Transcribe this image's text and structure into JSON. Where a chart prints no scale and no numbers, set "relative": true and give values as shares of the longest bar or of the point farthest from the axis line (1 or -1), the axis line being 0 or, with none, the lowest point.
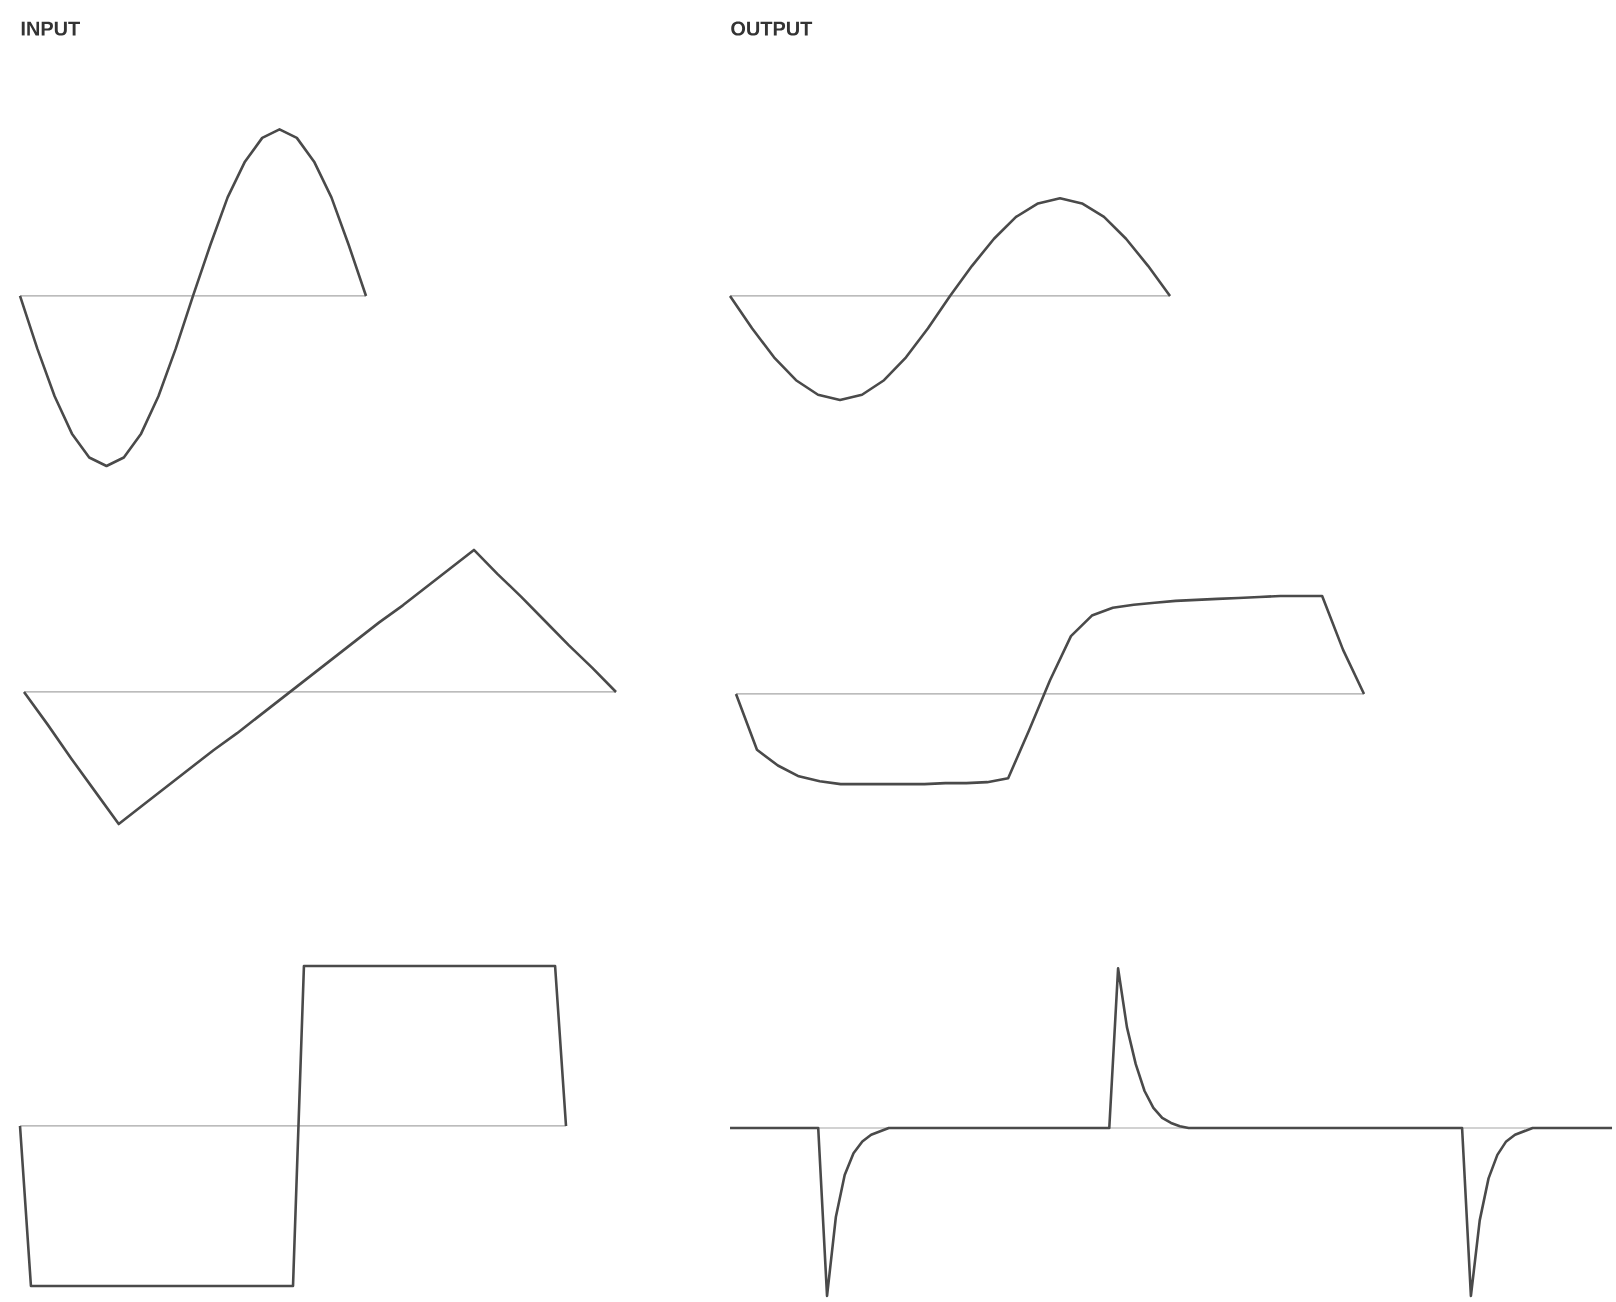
{
  "chart_data": [
    {
      "type": "line",
      "title": "INPUT",
      "relative": true,
      "color": "#4a4a4a",
      "categories": [
        null,
        null,
        null,
        null,
        null,
        null,
        null,
        null,
        null,
        null,
        null,
        null,
        null,
        null,
        null,
        null,
        null,
        null,
        null,
        null,
        null
      ],
      "values": [
        0,
        -0.31,
        -0.59,
        -0.81,
        -0.95,
        -1,
        -0.95,
        -0.81,
        -0.59,
        -0.31,
        0,
        0.3,
        0.58,
        0.79,
        0.93,
        0.98,
        0.93,
        0.79,
        0.58,
        0.3,
        0
      ]
    },
    {
      "type": "line",
      "title": "OUTPUT",
      "relative": true,
      "color": "#4a4a4a",
      "categories": [
        null,
        null,
        null,
        null,
        null,
        null,
        null,
        null,
        null,
        null,
        null,
        null,
        null,
        null,
        null,
        null,
        null,
        null,
        null,
        null,
        null
      ],
      "values": [
        0,
        -0.31,
        -0.59,
        -0.81,
        -0.95,
        -1,
        -0.95,
        -0.81,
        -0.59,
        -0.31,
        0,
        0.29,
        0.55,
        0.76,
        0.89,
        0.94,
        0.89,
        0.76,
        0.55,
        0.29,
        0
      ]
    },
    {
      "type": "line",
      "relative": true,
      "color": "#4a4a4a",
      "categories": [
        null,
        null,
        null,
        null,
        null,
        null,
        null,
        null,
        null,
        null,
        null,
        null,
        null,
        null,
        null,
        null,
        null,
        null,
        null,
        null,
        null,
        null,
        null,
        null,
        null,
        null
      ],
      "values": [
        0,
        -0.23,
        -0.47,
        -0.7,
        -0.93,
        -0.8,
        -0.67,
        -0.54,
        -0.41,
        -0.29,
        -0.16,
        -0.03,
        0.1,
        0.23,
        0.36,
        0.49,
        0.61,
        0.74,
        0.87,
        1,
        0.83,
        0.67,
        0.5,
        0.33,
        0.17,
        0
      ]
    },
    {
      "type": "line",
      "relative": true,
      "color": "#4a4a4a",
      "categories": [
        null,
        null,
        null,
        null,
        null,
        null,
        null,
        null,
        null,
        null,
        null,
        null,
        null,
        null,
        null,
        null,
        null,
        null,
        null,
        null,
        null,
        null,
        null,
        null,
        null,
        null,
        null,
        null,
        null,
        null,
        null
      ],
      "values": [
        0,
        -0.57,
        -0.73,
        -0.84,
        -0.89,
        -0.92,
        -0.92,
        -0.92,
        -0.92,
        -0.92,
        -0.91,
        -0.91,
        -0.9,
        -0.86,
        -0.37,
        0.14,
        0.59,
        0.8,
        0.88,
        0.91,
        0.93,
        0.95,
        0.96,
        0.97,
        0.98,
        0.99,
        1,
        1,
        1,
        0.45,
        0
      ]
    },
    {
      "type": "line",
      "relative": true,
      "color": "#4a4a4a",
      "categories": [
        null,
        null,
        null,
        null,
        null,
        null,
        null,
        null,
        null,
        null,
        null,
        null,
        null,
        null,
        null,
        null,
        null,
        null,
        null,
        null,
        null,
        null,
        null,
        null,
        null,
        null,
        null,
        null,
        null,
        null,
        null,
        null,
        null,
        null,
        null,
        null,
        null,
        null,
        null,
        null,
        null,
        null,
        null,
        null,
        null,
        null,
        null,
        null,
        null,
        null,
        null
      ],
      "values": [
        0,
        -1,
        -1,
        -1,
        -1,
        -1,
        -1,
        -1,
        -1,
        -1,
        -1,
        -1,
        -1,
        -1,
        -1,
        -1,
        -1,
        -1,
        -1,
        -1,
        -1,
        -1,
        -1,
        -1,
        -1,
        -1,
        1,
        1,
        1,
        1,
        1,
        1,
        1,
        1,
        1,
        1,
        1,
        1,
        1,
        1,
        1,
        1,
        1,
        1,
        1,
        1,
        1,
        1,
        1,
        1,
        0
      ]
    },
    {
      "type": "line",
      "relative": true,
      "color": "#4a4a4a",
      "categories": [
        null,
        null,
        null,
        null,
        null,
        null,
        null,
        null,
        null,
        null,
        null,
        null,
        null,
        null,
        null,
        null,
        null,
        null,
        null,
        null,
        null,
        null,
        null,
        null,
        null,
        null,
        null,
        null,
        null,
        null,
        null,
        null,
        null,
        null,
        null,
        null,
        null,
        null,
        null,
        null,
        null,
        null,
        null,
        null,
        null,
        null,
        null,
        null,
        null,
        null,
        null,
        null,
        null,
        null,
        null,
        null,
        null,
        null,
        null,
        null,
        null,
        null,
        null,
        null,
        null,
        null,
        null,
        null,
        null,
        null,
        null,
        null,
        null,
        null,
        null,
        null,
        null,
        null,
        null,
        null,
        null,
        null,
        null,
        null,
        null,
        null,
        null,
        null,
        null,
        null,
        null,
        null,
        null,
        null,
        null,
        null,
        null,
        null,
        null,
        null,
        null
      ],
      "values": [
        0,
        0,
        0,
        0,
        0,
        0,
        0,
        0,
        0,
        0,
        0,
        -1,
        -0.53,
        -0.28,
        -0.15,
        -0.08,
        -0.04,
        -0.02,
        0,
        0,
        0,
        0,
        0,
        0,
        0,
        0,
        0,
        0,
        0,
        0,
        0,
        0,
        0,
        0,
        0,
        0,
        0,
        0,
        0,
        0,
        0,
        0,
        0,
        0,
        0.95,
        0.6,
        0.38,
        0.22,
        0.12,
        0.06,
        0.03,
        0.01,
        0,
        0,
        0,
        0,
        0,
        0,
        0,
        0,
        0,
        0,
        0,
        0,
        0,
        0,
        0,
        0,
        0,
        0,
        0,
        0,
        0,
        0,
        0,
        0,
        0,
        0,
        0,
        0,
        0,
        0,
        0,
        0,
        -1,
        -0.55,
        -0.3,
        -0.16,
        -0.08,
        -0.04,
        -0.02,
        0,
        0,
        0,
        0,
        0,
        0,
        0,
        0,
        0,
        0
      ]
    }
  ]
}
